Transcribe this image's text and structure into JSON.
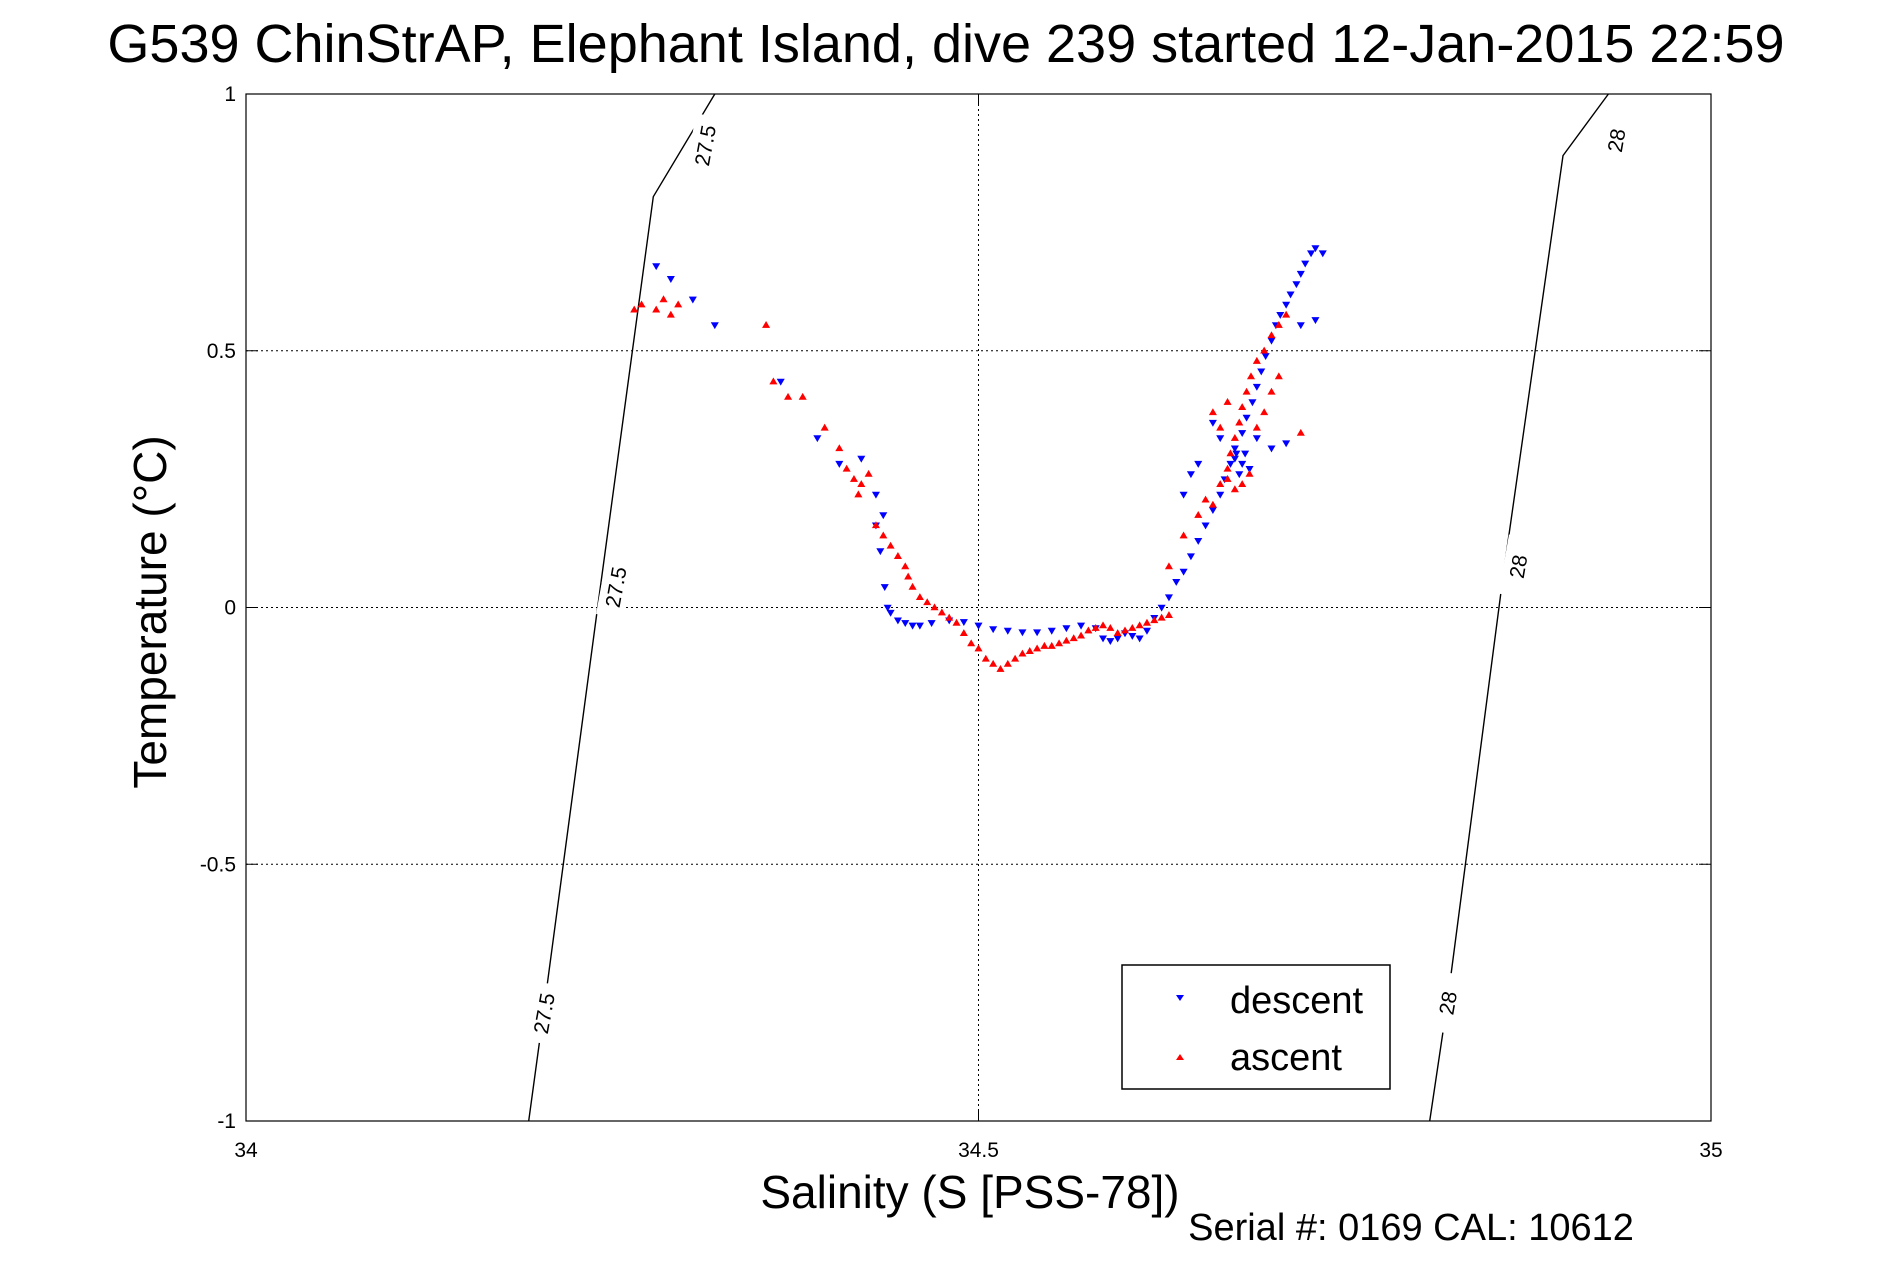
{
  "figure": {
    "title": "G539 ChinStrAP, Elephant Island, dive 239 started 12-Jan-2015 22:59",
    "footer": "Serial #: 0169 CAL: 10612"
  },
  "chart_data": {
    "type": "scatter",
    "title": "G539 ChinStrAP, Elephant Island, dive 239 started 12-Jan-2015 22:59",
    "xlabel": "Salinity (S [PSS-78])",
    "ylabel": "Temperature (°C)",
    "xlim": [
      34,
      35
    ],
    "ylim": [
      -1,
      1
    ],
    "xticks": [
      34,
      34.5,
      35
    ],
    "xtick_labels": [
      "34",
      "34.5",
      "35"
    ],
    "yticks": [
      -1,
      -0.5,
      0,
      0.5,
      1
    ],
    "ytick_labels": [
      "-1",
      "-0.5",
      "0",
      "0.5",
      "1"
    ],
    "grid": true,
    "legend_position": "bottom-right",
    "colors": {
      "descent": "#0000ff",
      "ascent": "#ff0000",
      "contour": "#000000",
      "grid": "#000000"
    },
    "density_contours": [
      {
        "label": "27.5",
        "points": [
          [
            34.193,
            -1.0
          ],
          [
            34.203,
            -0.79
          ],
          [
            34.24,
            0.0
          ],
          [
            34.278,
            0.8
          ],
          [
            34.32,
            1.0
          ]
        ],
        "label_positions": [
          [
            34.203,
            -0.79
          ],
          [
            34.252,
            0.04
          ],
          [
            34.313,
            0.9
          ]
        ]
      },
      {
        "label": "28",
        "points": [
          [
            34.808,
            -1.0
          ],
          [
            34.82,
            -0.77
          ],
          [
            34.858,
            0.06
          ],
          [
            34.899,
            0.88
          ],
          [
            34.93,
            1.0
          ]
        ],
        "label_positions": [
          [
            34.82,
            -0.77
          ],
          [
            34.868,
            0.08
          ],
          [
            34.935,
            0.91
          ]
        ]
      }
    ],
    "series": [
      {
        "name": "descent",
        "marker": "triangle-down",
        "points": [
          [
            34.28,
            0.665
          ],
          [
            34.29,
            0.64
          ],
          [
            34.305,
            0.6
          ],
          [
            34.32,
            0.55
          ],
          [
            34.365,
            0.44
          ],
          [
            34.39,
            0.33
          ],
          [
            34.405,
            0.28
          ],
          [
            34.42,
            0.29
          ],
          [
            34.43,
            0.22
          ],
          [
            34.435,
            0.18
          ],
          [
            34.43,
            0.16
          ],
          [
            34.433,
            0.11
          ],
          [
            34.436,
            0.04
          ],
          [
            34.438,
            0.0
          ],
          [
            34.44,
            -0.01
          ],
          [
            34.445,
            -0.025
          ],
          [
            34.45,
            -0.03
          ],
          [
            34.455,
            -0.035
          ],
          [
            34.46,
            -0.035
          ],
          [
            34.468,
            -0.03
          ],
          [
            34.48,
            -0.025
          ],
          [
            34.49,
            -0.028
          ],
          [
            34.5,
            -0.035
          ],
          [
            34.51,
            -0.042
          ],
          [
            34.52,
            -0.045
          ],
          [
            34.53,
            -0.048
          ],
          [
            34.54,
            -0.048
          ],
          [
            34.55,
            -0.045
          ],
          [
            34.56,
            -0.04
          ],
          [
            34.57,
            -0.035
          ],
          [
            34.58,
            -0.04
          ],
          [
            34.585,
            -0.06
          ],
          [
            34.59,
            -0.065
          ],
          [
            34.595,
            -0.06
          ],
          [
            34.6,
            -0.05
          ],
          [
            34.605,
            -0.055
          ],
          [
            34.61,
            -0.06
          ],
          [
            34.615,
            -0.045
          ],
          [
            34.62,
            -0.02
          ],
          [
            34.625,
            0.0
          ],
          [
            34.63,
            0.02
          ],
          [
            34.635,
            0.05
          ],
          [
            34.64,
            0.07
          ],
          [
            34.645,
            0.1
          ],
          [
            34.65,
            0.13
          ],
          [
            34.655,
            0.16
          ],
          [
            34.66,
            0.19
          ],
          [
            34.665,
            0.22
          ],
          [
            34.668,
            0.25
          ],
          [
            34.672,
            0.28
          ],
          [
            34.675,
            0.31
          ],
          [
            34.68,
            0.34
          ],
          [
            34.683,
            0.37
          ],
          [
            34.687,
            0.4
          ],
          [
            34.69,
            0.43
          ],
          [
            34.693,
            0.46
          ],
          [
            34.696,
            0.49
          ],
          [
            34.7,
            0.52
          ],
          [
            34.703,
            0.55
          ],
          [
            34.706,
            0.57
          ],
          [
            34.71,
            0.59
          ],
          [
            34.713,
            0.61
          ],
          [
            34.717,
            0.63
          ],
          [
            34.72,
            0.65
          ],
          [
            34.723,
            0.67
          ],
          [
            34.727,
            0.69
          ],
          [
            34.73,
            0.7
          ],
          [
            34.735,
            0.69
          ],
          [
            34.72,
            0.55
          ],
          [
            34.73,
            0.56
          ],
          [
            34.676,
            0.3
          ],
          [
            34.68,
            0.28
          ],
          [
            34.682,
            0.3
          ],
          [
            34.685,
            0.27
          ],
          [
            34.678,
            0.26
          ],
          [
            34.675,
            0.29
          ],
          [
            34.69,
            0.33
          ],
          [
            34.7,
            0.31
          ],
          [
            34.71,
            0.32
          ],
          [
            34.665,
            0.33
          ],
          [
            34.66,
            0.36
          ],
          [
            34.65,
            0.28
          ],
          [
            34.645,
            0.26
          ],
          [
            34.64,
            0.22
          ]
        ]
      },
      {
        "name": "ascent",
        "marker": "triangle-up",
        "points": [
          [
            34.265,
            0.58
          ],
          [
            34.27,
            0.59
          ],
          [
            34.28,
            0.58
          ],
          [
            34.285,
            0.6
          ],
          [
            34.29,
            0.57
          ],
          [
            34.295,
            0.59
          ],
          [
            34.355,
            0.55
          ],
          [
            34.36,
            0.44
          ],
          [
            34.37,
            0.41
          ],
          [
            34.38,
            0.41
          ],
          [
            34.395,
            0.35
          ],
          [
            34.405,
            0.31
          ],
          [
            34.41,
            0.27
          ],
          [
            34.415,
            0.25
          ],
          [
            34.418,
            0.22
          ],
          [
            34.42,
            0.24
          ],
          [
            34.425,
            0.26
          ],
          [
            34.43,
            0.16
          ],
          [
            34.435,
            0.14
          ],
          [
            34.44,
            0.12
          ],
          [
            34.445,
            0.1
          ],
          [
            34.45,
            0.08
          ],
          [
            34.452,
            0.06
          ],
          [
            34.455,
            0.04
          ],
          [
            34.46,
            0.02
          ],
          [
            34.465,
            0.01
          ],
          [
            34.47,
            0.0
          ],
          [
            34.475,
            -0.01
          ],
          [
            34.48,
            -0.02
          ],
          [
            34.485,
            -0.03
          ],
          [
            34.49,
            -0.05
          ],
          [
            34.495,
            -0.07
          ],
          [
            34.5,
            -0.08
          ],
          [
            34.505,
            -0.1
          ],
          [
            34.51,
            -0.11
          ],
          [
            34.515,
            -0.12
          ],
          [
            34.52,
            -0.11
          ],
          [
            34.525,
            -0.1
          ],
          [
            34.53,
            -0.09
          ],
          [
            34.535,
            -0.085
          ],
          [
            34.54,
            -0.08
          ],
          [
            34.545,
            -0.075
          ],
          [
            34.55,
            -0.075
          ],
          [
            34.555,
            -0.07
          ],
          [
            34.56,
            -0.065
          ],
          [
            34.565,
            -0.06
          ],
          [
            34.57,
            -0.055
          ],
          [
            34.575,
            -0.045
          ],
          [
            34.58,
            -0.04
          ],
          [
            34.585,
            -0.035
          ],
          [
            34.59,
            -0.04
          ],
          [
            34.595,
            -0.05
          ],
          [
            34.6,
            -0.045
          ],
          [
            34.605,
            -0.04
          ],
          [
            34.61,
            -0.035
          ],
          [
            34.615,
            -0.03
          ],
          [
            34.62,
            -0.025
          ],
          [
            34.625,
            -0.02
          ],
          [
            34.63,
            -0.015
          ],
          [
            34.66,
            0.2
          ],
          [
            34.665,
            0.24
          ],
          [
            34.67,
            0.27
          ],
          [
            34.672,
            0.3
          ],
          [
            34.675,
            0.33
          ],
          [
            34.678,
            0.36
          ],
          [
            34.68,
            0.39
          ],
          [
            34.683,
            0.42
          ],
          [
            34.686,
            0.45
          ],
          [
            34.69,
            0.48
          ],
          [
            34.695,
            0.5
          ],
          [
            34.7,
            0.53
          ],
          [
            34.705,
            0.55
          ],
          [
            34.71,
            0.57
          ],
          [
            34.67,
            0.25
          ],
          [
            34.675,
            0.23
          ],
          [
            34.68,
            0.24
          ],
          [
            34.685,
            0.26
          ],
          [
            34.665,
            0.35
          ],
          [
            34.66,
            0.38
          ],
          [
            34.67,
            0.4
          ],
          [
            34.69,
            0.35
          ],
          [
            34.695,
            0.38
          ],
          [
            34.7,
            0.42
          ],
          [
            34.705,
            0.45
          ],
          [
            34.64,
            0.14
          ],
          [
            34.63,
            0.08
          ],
          [
            34.65,
            0.18
          ],
          [
            34.655,
            0.21
          ],
          [
            34.72,
            0.34
          ]
        ]
      }
    ]
  }
}
